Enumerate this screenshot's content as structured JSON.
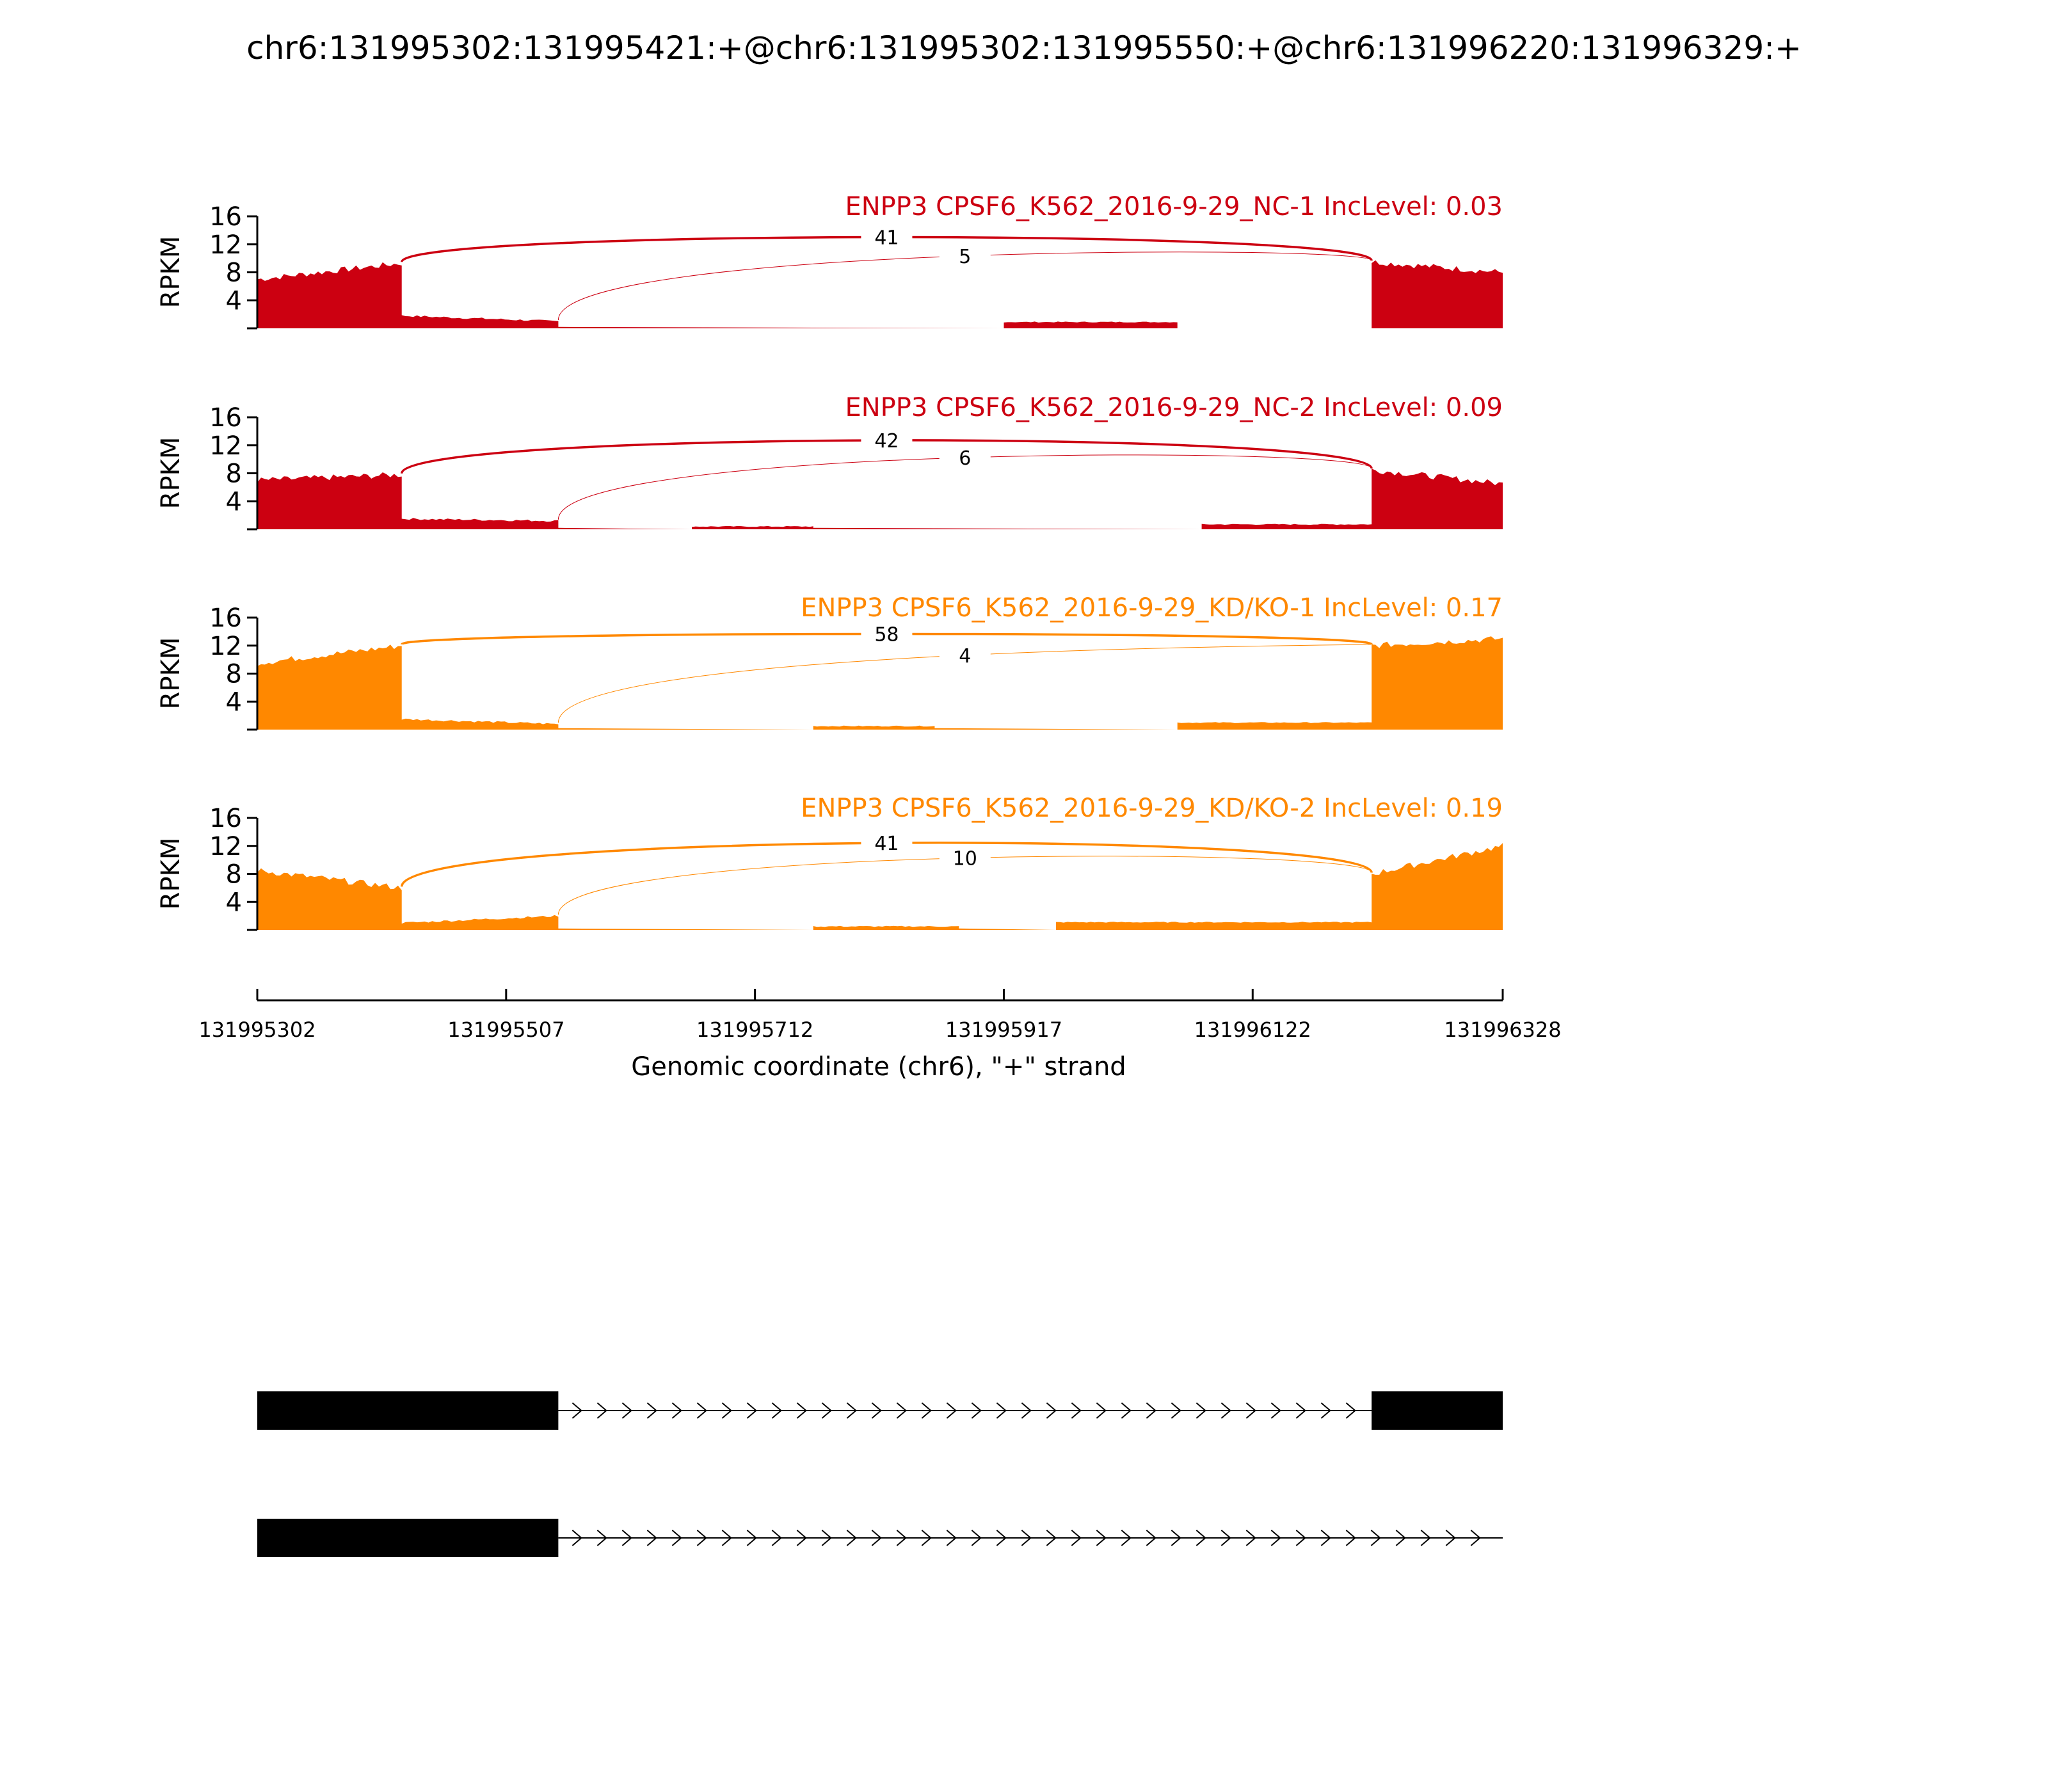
{
  "title": "chr6:131995302:131995421:+@chr6:131995302:131995550:+@chr6:131996220:131996329:+",
  "chart_data": {
    "type": "area",
    "xlabel": "Genomic coordinate (chr6), \"+\" strand",
    "ylabel": "RPKM",
    "xlim": [
      131995302,
      131996328
    ],
    "ylim": [
      0,
      16
    ],
    "yticks": [
      "4",
      "8",
      "12",
      "16"
    ],
    "xticks": [
      "131995302",
      "131995507",
      "131995712",
      "131995917",
      "131996122",
      "131996328"
    ],
    "grid": false,
    "legend": "none",
    "exon_regions": [
      {
        "start": 131995302,
        "end": 131995421
      },
      {
        "start": 131995421,
        "end": 131995550
      },
      {
        "start": 131996220,
        "end": 131996329
      }
    ],
    "panels": [
      {
        "label": "ENPP3 CPSF6_K562_2016-9-29_NC-1 IncLevel: 0.03",
        "color": "#cc0011",
        "exon1": {
          "start": 7.0,
          "end": 9.3
        },
        "exon2": {
          "start": 1.8,
          "end": 1.0
        },
        "exon3": {
          "start": 9.5,
          "end": 8.0
        },
        "intron_bumps": [
          {
            "start": 131995917,
            "end": 131996060,
            "height": 0.9
          }
        ],
        "junctions": [
          {
            "label": "41",
            "count": 41,
            "from": 131995421,
            "to": 131996220
          },
          {
            "label": "5",
            "count": 5,
            "from": 131995550,
            "to": 131996220
          }
        ]
      },
      {
        "label": "ENPP3 CPSF6_K562_2016-9-29_NC-2 IncLevel: 0.09",
        "color": "#cc0011",
        "exon1": {
          "start": 7.0,
          "end": 7.8
        },
        "exon2": {
          "start": 1.5,
          "end": 1.2
        },
        "exon3": {
          "start": 8.5,
          "end": 6.5
        },
        "intron_bumps": [
          {
            "start": 131995660,
            "end": 131995760,
            "height": 0.4
          },
          {
            "start": 131996080,
            "end": 131996220,
            "height": 0.7
          }
        ],
        "junctions": [
          {
            "label": "42",
            "count": 42,
            "from": 131995421,
            "to": 131996220
          },
          {
            "label": "6",
            "count": 6,
            "from": 131995550,
            "to": 131996220
          }
        ]
      },
      {
        "label": "ENPP3 CPSF6_K562_2016-9-29_KD/KO-1 IncLevel: 0.17",
        "color": "#ff8800",
        "exon1": {
          "start": 9.5,
          "end": 12.0
        },
        "exon2": {
          "start": 1.5,
          "end": 0.8
        },
        "exon3": {
          "start": 12.0,
          "end": 13.0
        },
        "intron_bumps": [
          {
            "start": 131995760,
            "end": 131995860,
            "height": 0.5
          },
          {
            "start": 131996060,
            "end": 131996220,
            "height": 1.0
          }
        ],
        "junctions": [
          {
            "label": "58",
            "count": 58,
            "from": 131995421,
            "to": 131996220
          },
          {
            "label": "4",
            "count": 4,
            "from": 131995550,
            "to": 131996220
          }
        ]
      },
      {
        "label": "ENPP3 CPSF6_K562_2016-9-29_KD/KO-2 IncLevel: 0.19",
        "color": "#ff8800",
        "exon1": {
          "start": 8.5,
          "end": 6.0
        },
        "exon2": {
          "start": 1.0,
          "end": 2.0
        },
        "exon3": {
          "start": 8.0,
          "end": 12.0
        },
        "intron_bumps": [
          {
            "start": 131995760,
            "end": 131995880,
            "height": 0.5
          },
          {
            "start": 131995960,
            "end": 131996220,
            "height": 1.1
          }
        ],
        "junctions": [
          {
            "label": "41",
            "count": 41,
            "from": 131995421,
            "to": 131996220
          },
          {
            "label": "10",
            "count": 10,
            "from": 131995550,
            "to": 131996220
          }
        ]
      }
    ],
    "isoforms": [
      {
        "exons": [
          {
            "start": 131995302,
            "end": 131995550
          },
          {
            "start": 131996220,
            "end": 131996329
          }
        ]
      },
      {
        "exons": [
          {
            "start": 131995302,
            "end": 131995550
          }
        ]
      }
    ]
  }
}
